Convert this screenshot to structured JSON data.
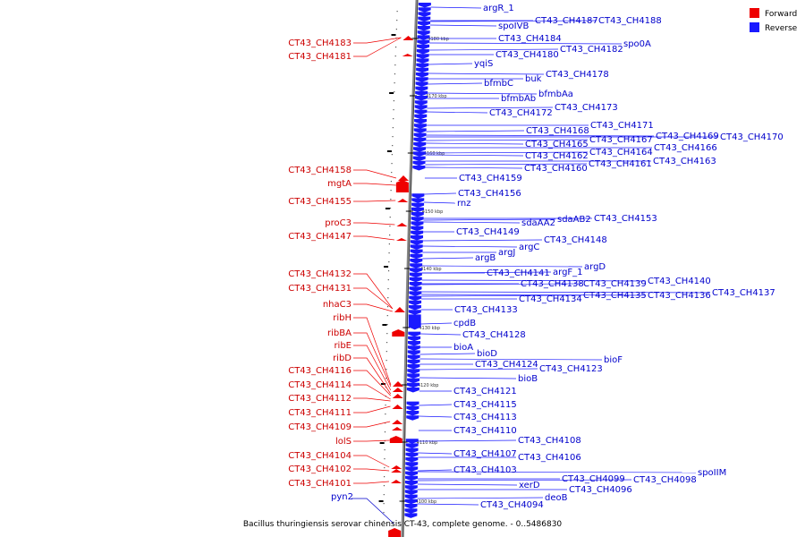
{
  "legend": [
    {
      "label": "Forward",
      "color": "#ee0000"
    },
    {
      "label": "Reverse",
      "color": "#1a1aff"
    }
  ],
  "caption": "Bacillus thuringiensis serovar chinensis CT-43, complete genome. - 0..5486830",
  "scale_ticks": [
    "4180 kbp",
    "4170 kbp",
    "4160 kbp",
    "4150 kbp",
    "4140 kbp",
    "4130 kbp",
    "4120 kbp",
    "4110 kbp",
    "4100 kbp"
  ],
  "forward_genes": [
    "CT43_CH4183",
    "CT43_CH4181",
    "CT43_CH4158",
    "mgtA",
    "CT43_CH4155",
    "proC3",
    "CT43_CH4147",
    "CT43_CH4132",
    "CT43_CH4131",
    "nhaC3",
    "ribH",
    "ribBA",
    "ribE",
    "ribD",
    "CT43_CH4116",
    "CT43_CH4114",
    "CT43_CH4112",
    "CT43_CH4111",
    "CT43_CH4109",
    "lolS",
    "CT43_CH4104",
    "CT43_CH4102",
    "CT43_CH4101"
  ],
  "reverse_genes": [
    "argR_1",
    "CT43_CH4187",
    "CT43_CH4188",
    "spoIVB",
    "CT43_CH4184",
    "CT43_CH4182",
    "spo0A",
    "CT43_CH4180",
    "yqiS",
    "CT43_CH4178",
    "buk",
    "bfmbC",
    "bfmbAa",
    "bfmbAb",
    "CT43_CH4173",
    "CT43_CH4172",
    "CT43_CH4171",
    "CT43_CH4168",
    "CT43_CH4169",
    "CT43_CH4170",
    "CT43_CH4167",
    "CT43_CH4165",
    "CT43_CH4166",
    "CT43_CH4164",
    "CT43_CH4162",
    "CT43_CH4163",
    "CT43_CH4161",
    "CT43_CH4160",
    "CT43_CH4159",
    "CT43_CH4156",
    "rnz",
    "CT43_CH4153",
    "sdaAB2",
    "sdaAA2",
    "CT43_CH4149",
    "CT43_CH4148",
    "argC",
    "argJ",
    "argB",
    "argD",
    "CT43_CH4141",
    "argF_1",
    "CT43_CH4140",
    "CT43_CH4138",
    "CT43_CH4139",
    "CT43_CH4137",
    "CT43_CH4134",
    "CT43_CH4135",
    "CT43_CH4136",
    "CT43_CH4133",
    "cpdB",
    "CT43_CH4128",
    "bioA",
    "bioD",
    "bioF",
    "CT43_CH4124",
    "CT43_CH4123",
    "bioB",
    "CT43_CH4121",
    "CT43_CH4115",
    "CT43_CH4113",
    "CT43_CH4110",
    "CT43_CH4108",
    "CT43_CH4107",
    "CT43_CH4106",
    "CT43_CH4103",
    "spoIIM",
    "CT43_CH4099",
    "CT43_CH4098",
    "xerD",
    "CT43_CH4096",
    "deoB",
    "CT43_CH4094",
    "pyn2"
  ]
}
